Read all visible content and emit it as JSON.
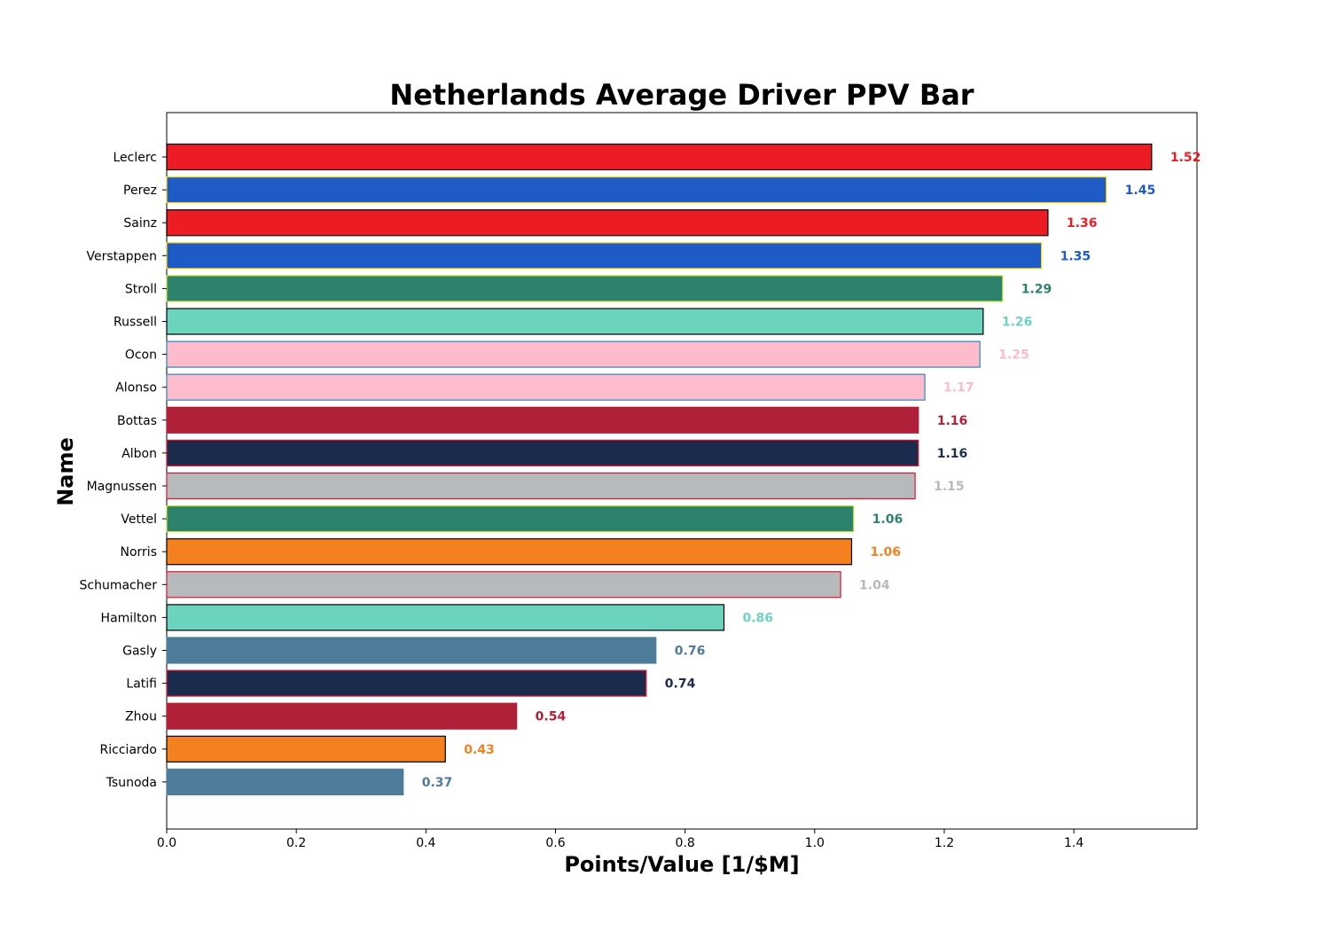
{
  "chart_data": {
    "type": "bar",
    "orientation": "horizontal",
    "title": "Netherlands Average Driver PPV Bar",
    "xlabel": "Points/Value [1/$M]",
    "ylabel": "Name",
    "xlim": [
      0,
      1.59
    ],
    "xticks": [
      "0.0",
      "0.2",
      "0.4",
      "0.6",
      "0.8",
      "1.0",
      "1.2",
      "1.4"
    ],
    "grid": false,
    "bars": [
      {
        "name": "Leclerc",
        "value": 1.52,
        "label": "1.52",
        "fill": "#ED1C24",
        "edge": "#000000"
      },
      {
        "name": "Perez",
        "value": 1.45,
        "label": "1.45",
        "fill": "#1F5BC6",
        "edge": "#FFD700"
      },
      {
        "name": "Sainz",
        "value": 1.36,
        "label": "1.36",
        "fill": "#ED1C24",
        "edge": "#000000"
      },
      {
        "name": "Verstappen",
        "value": 1.35,
        "label": "1.35",
        "fill": "#1F5BC6",
        "edge": "#FFD700"
      },
      {
        "name": "Stroll",
        "value": 1.29,
        "label": "1.29",
        "fill": "#2D826D",
        "edge": "#C6E22B"
      },
      {
        "name": "Russell",
        "value": 1.26,
        "label": "1.26",
        "fill": "#6CD3BF",
        "edge": "#000000"
      },
      {
        "name": "Ocon",
        "value": 1.255,
        "label": "1.25",
        "fill": "#FDBCCB",
        "edge": "#2E86C1"
      },
      {
        "name": "Alonso",
        "value": 1.17,
        "label": "1.17",
        "fill": "#FDBCCB",
        "edge": "#2E86C1"
      },
      {
        "name": "Bottas",
        "value": 1.16,
        "label": "1.16",
        "fill": "#B12039",
        "edge": "#B12039"
      },
      {
        "name": "Albon",
        "value": 1.16,
        "label": "1.16",
        "fill": "#1B2B4D",
        "edge": "#E8132B"
      },
      {
        "name": "Magnussen",
        "value": 1.155,
        "label": "1.15",
        "fill": "#B6BABD",
        "edge": "#E8132B"
      },
      {
        "name": "Vettel",
        "value": 1.06,
        "label": "1.06",
        "fill": "#2D826D",
        "edge": "#C6E22B"
      },
      {
        "name": "Norris",
        "value": 1.057,
        "label": "1.06",
        "fill": "#F58020",
        "edge": "#000000"
      },
      {
        "name": "Schumacher",
        "value": 1.04,
        "label": "1.04",
        "fill": "#B6BABD",
        "edge": "#E8132B"
      },
      {
        "name": "Hamilton",
        "value": 0.86,
        "label": "0.86",
        "fill": "#6CD3BF",
        "edge": "#000000"
      },
      {
        "name": "Gasly",
        "value": 0.755,
        "label": "0.76",
        "fill": "#4E7C9B",
        "edge": "#4E7C9B"
      },
      {
        "name": "Latifi",
        "value": 0.74,
        "label": "0.74",
        "fill": "#1B2B4D",
        "edge": "#E8132B"
      },
      {
        "name": "Zhou",
        "value": 0.54,
        "label": "0.54",
        "fill": "#B12039",
        "edge": "#B12039"
      },
      {
        "name": "Ricciardo",
        "value": 0.43,
        "label": "0.43",
        "fill": "#F58020",
        "edge": "#000000"
      },
      {
        "name": "Tsunoda",
        "value": 0.365,
        "label": "0.37",
        "fill": "#4E7C9B",
        "edge": "#4E7C9B"
      }
    ],
    "label_colors": {
      "#ED1C24": "#ED1C24",
      "#1F5BC6": "#1F5BC6",
      "#2D826D": "#2D826D",
      "#6CD3BF": "#6CD3BF",
      "#FDBCCB": "#FDBCCB",
      "#B12039": "#B12039",
      "#1B2B4D": "#1B2B4D",
      "#B6BABD": "#B6BABD",
      "#F58020": "#F58020",
      "#4E7C9B": "#4E7C9B"
    }
  }
}
